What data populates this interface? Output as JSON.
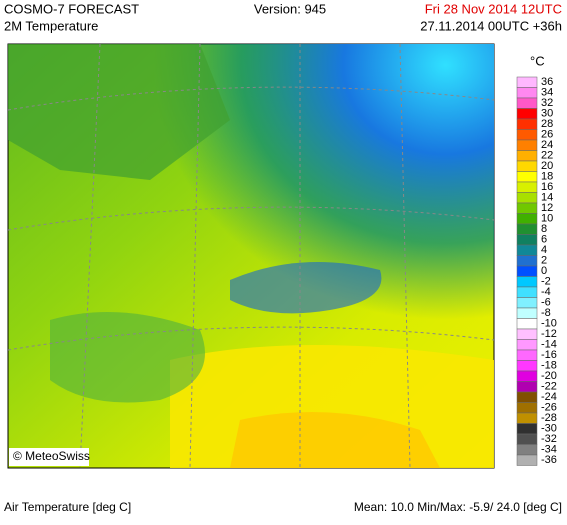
{
  "header": {
    "title": "COSMO-7 FORECAST",
    "subtitle": "2M Temperature",
    "version": "Version: 945",
    "valid_time": "Fri 28 Nov 2014 12UTC",
    "run_time": "27.11.2014 00UTC +36h"
  },
  "legend": {
    "unit": "°C",
    "labels": [
      36,
      34,
      32,
      30,
      28,
      26,
      24,
      22,
      20,
      18,
      16,
      14,
      12,
      10,
      8,
      6,
      4,
      2,
      0,
      -2,
      -4,
      -6,
      -8,
      -10,
      -12,
      -14,
      -16,
      -18,
      -20,
      -22,
      -24,
      -26,
      -28,
      -30,
      -32,
      -34,
      -36
    ],
    "colors": [
      "#ffb8ff",
      "#ff88f0",
      "#ff58c8",
      "#ff0000",
      "#ff3000",
      "#ff5a00",
      "#ff8000",
      "#ffb000",
      "#ffd800",
      "#ffff00",
      "#d8f000",
      "#a8e000",
      "#70c800",
      "#40b000",
      "#209030",
      "#108060",
      "#108898",
      "#2070d0",
      "#0050ff",
      "#00c8ff",
      "#40e0ff",
      "#80f0ff",
      "#c0ffff",
      "#ffffff",
      "#ffc0ff",
      "#ff98ff",
      "#ff68ff",
      "#ff38ff",
      "#e000e0",
      "#b000b0",
      "#805000",
      "#a07000",
      "#c09000",
      "#303030",
      "#505050",
      "#808080",
      "#b0b0b0"
    ]
  },
  "copyright": "© MeteoSwiss",
  "footer": {
    "left": "Air Temperature [deg C]",
    "stats": "Mean:  10.0 Min/Max:  -5.9/  24.0 [deg C]"
  }
}
